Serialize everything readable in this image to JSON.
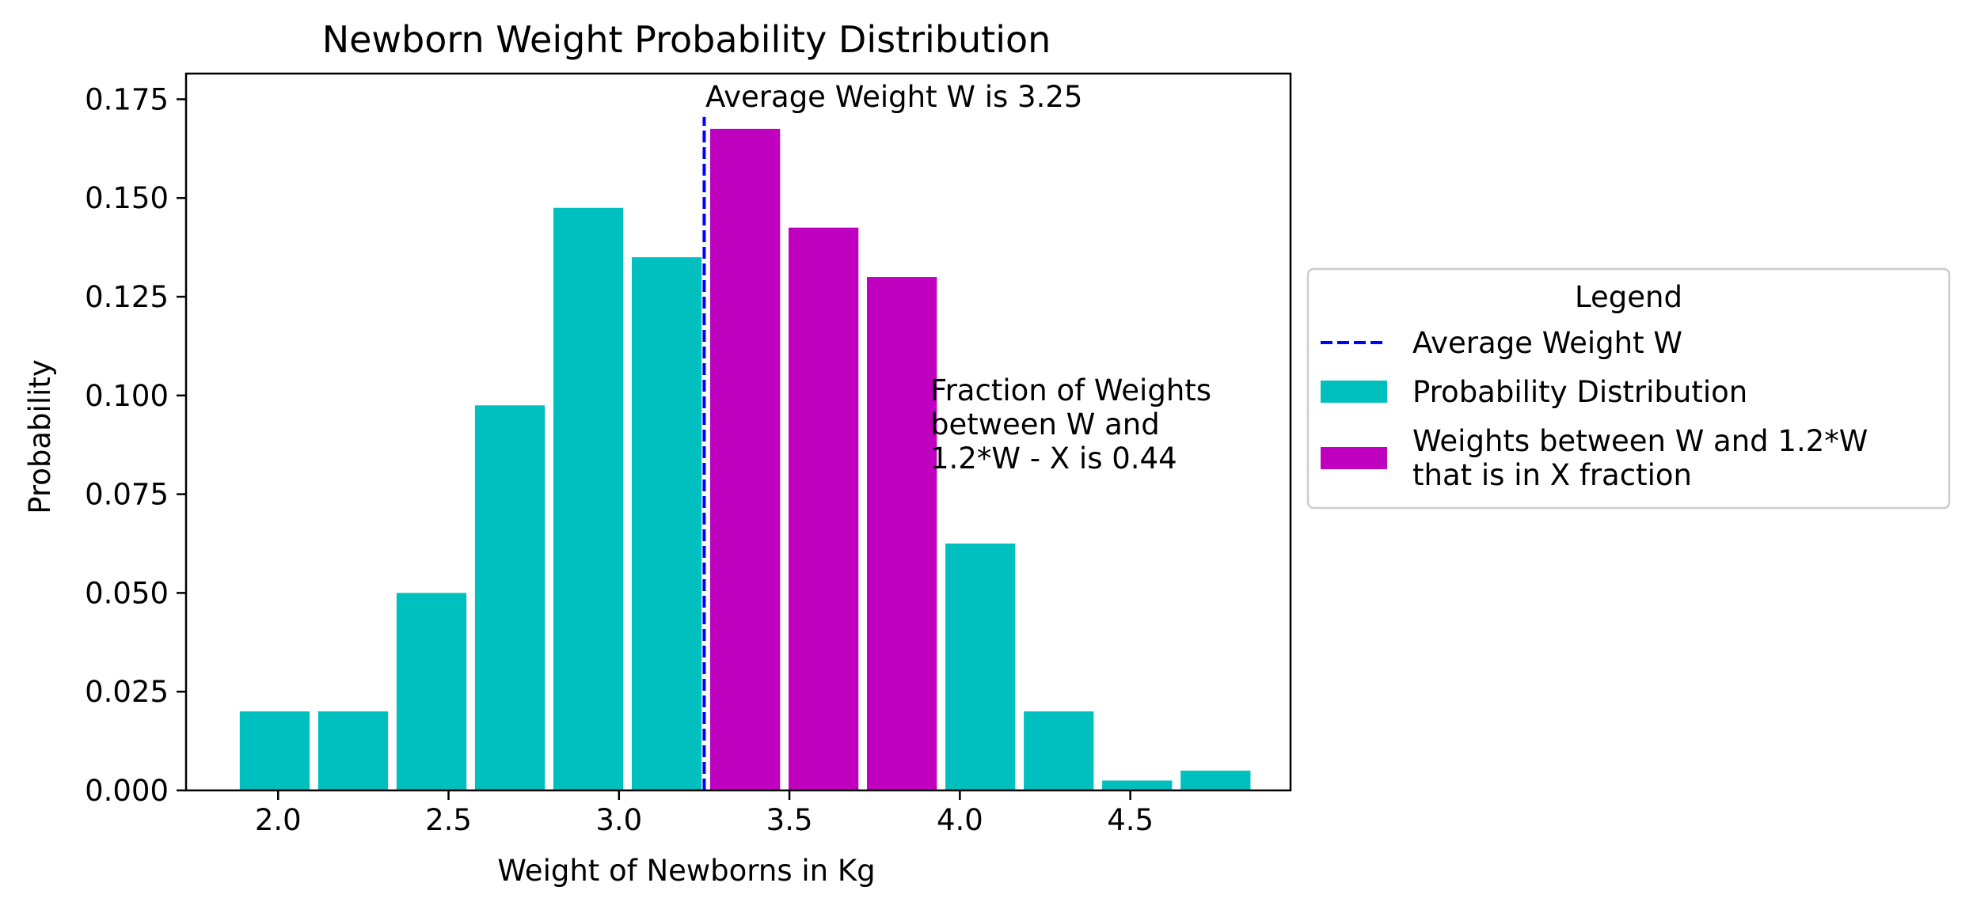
{
  "chart_data": {
    "type": "bar",
    "title": "Newborn Weight Probability Distribution",
    "xlabel": "Weight of Newborns in Kg",
    "ylabel": "Probability",
    "xlim": [
      1.73,
      4.97
    ],
    "ylim": [
      0.0,
      0.1815
    ],
    "xticks": [
      "2.0",
      "2.5",
      "3.0",
      "3.5",
      "4.0",
      "4.5"
    ],
    "xtick_values": [
      2.0,
      2.5,
      3.0,
      3.5,
      4.0,
      4.5
    ],
    "yticks": [
      "0.000",
      "0.025",
      "0.050",
      "0.075",
      "0.100",
      "0.125",
      "0.150",
      "0.175"
    ],
    "ytick_values": [
      0.0,
      0.025,
      0.05,
      0.075,
      0.1,
      0.125,
      0.15,
      0.175
    ],
    "bar_width": 0.205,
    "bars": [
      {
        "x": 1.99,
        "value": 0.02,
        "series": "dist"
      },
      {
        "x": 2.22,
        "value": 0.02,
        "series": "dist"
      },
      {
        "x": 2.45,
        "value": 0.05,
        "series": "dist"
      },
      {
        "x": 2.68,
        "value": 0.0975,
        "series": "dist"
      },
      {
        "x": 2.91,
        "value": 0.1475,
        "series": "dist"
      },
      {
        "x": 3.14,
        "value": 0.135,
        "series": "dist"
      },
      {
        "x": 3.37,
        "value": 0.1675,
        "series": "range"
      },
      {
        "x": 3.6,
        "value": 0.1425,
        "series": "range"
      },
      {
        "x": 3.83,
        "value": 0.13,
        "series": "range"
      },
      {
        "x": 4.06,
        "value": 0.0625,
        "series": "dist"
      },
      {
        "x": 4.29,
        "value": 0.02,
        "series": "dist"
      },
      {
        "x": 4.52,
        "value": 0.0025,
        "series": "dist"
      },
      {
        "x": 4.75,
        "value": 0.005,
        "series": "dist"
      }
    ],
    "average_line": {
      "x": 3.25,
      "y_top": 0.1705
    },
    "annotations": {
      "average": "Average Weight W is 3.25",
      "fraction_lines": [
        "Fraction of Weights",
        "between W and",
        "1.2*W - X is 0.44"
      ]
    },
    "legend": {
      "title": "Legend",
      "placement": "right, outside plot",
      "entries": [
        {
          "key": "avg",
          "lines": [
            "Average Weight W"
          ],
          "kind": "dashed-line",
          "color": "#0000ff"
        },
        {
          "key": "dist",
          "lines": [
            "Probability Distribution"
          ],
          "kind": "patch",
          "color": "#00bfbf"
        },
        {
          "key": "range",
          "lines": [
            "Weights between W and 1.2*W",
            "that is in X fraction"
          ],
          "kind": "patch",
          "color": "#bf00bf"
        }
      ]
    },
    "colors": {
      "dist": "#00bfbf",
      "range": "#bf00bf",
      "avg": "#0000ff"
    },
    "grid": false
  }
}
